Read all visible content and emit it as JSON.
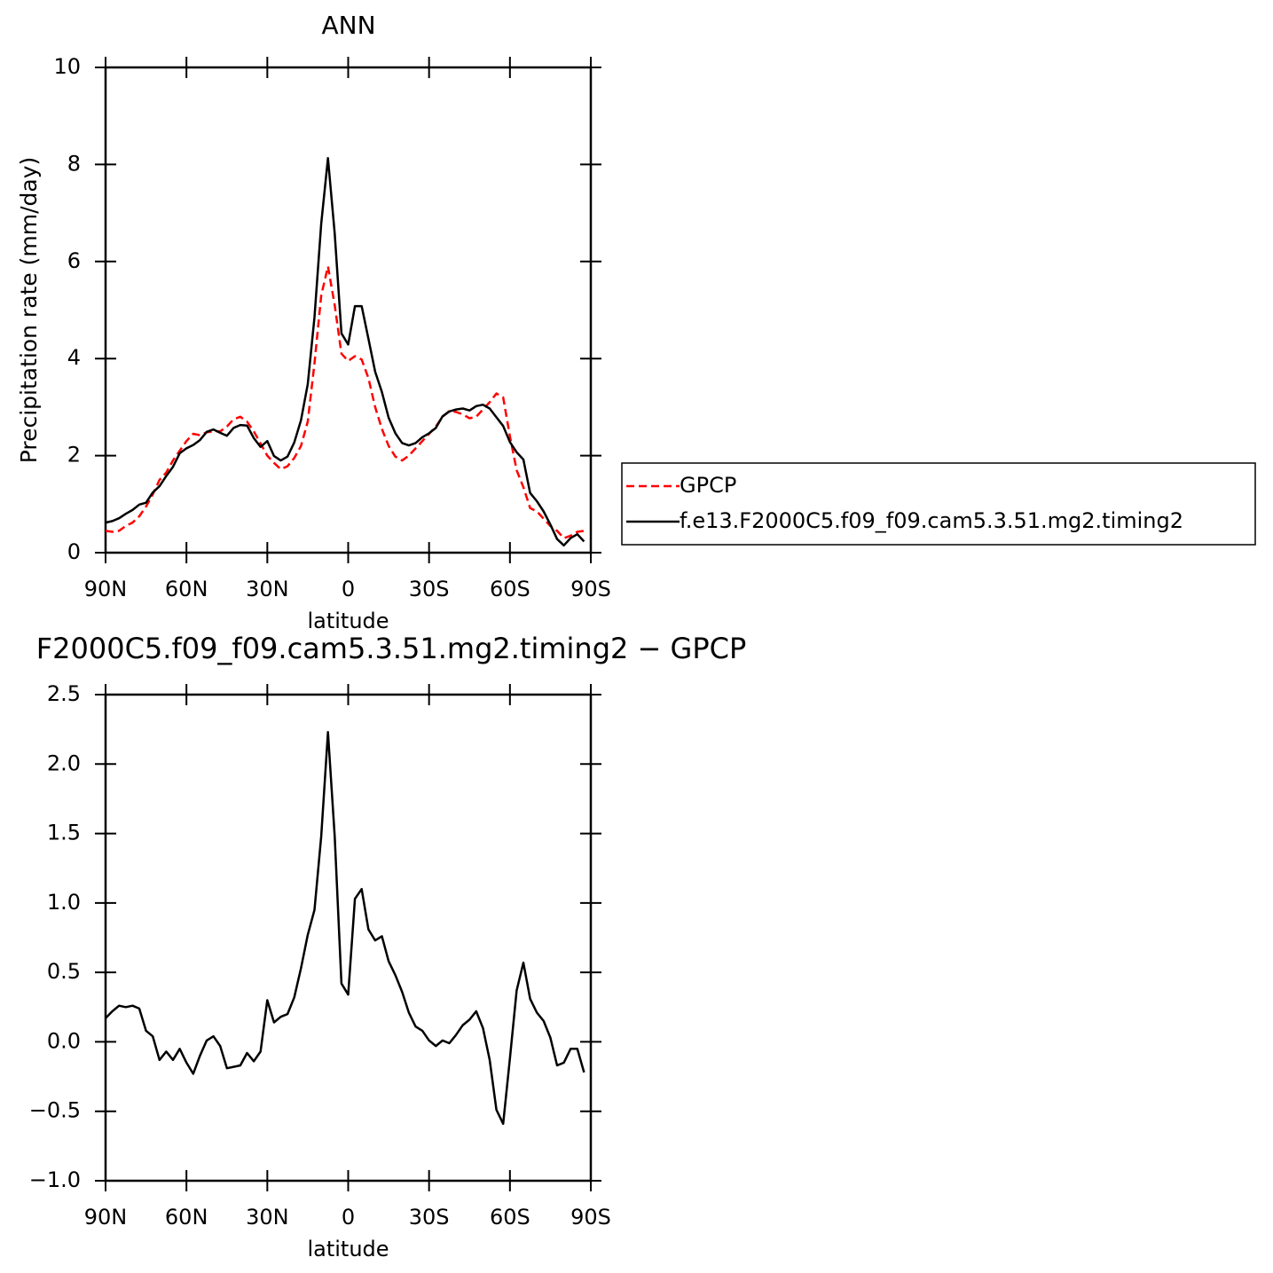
{
  "chart_data": [
    {
      "type": "line",
      "title": "ANN",
      "ylabel": "Precipitation rate (mm/day)",
      "xlabel": "latitude",
      "x": [
        90,
        87.5,
        85,
        82.5,
        80,
        77.5,
        75,
        72.5,
        70,
        67.5,
        65,
        62.5,
        60,
        57.5,
        55,
        52.5,
        50,
        47.5,
        45,
        42.5,
        40,
        37.5,
        35,
        32.5,
        30,
        27.5,
        25,
        22.5,
        20,
        17.5,
        15,
        12.5,
        10,
        7.5,
        5,
        2.5,
        0,
        -2.5,
        -5,
        -7.5,
        -10,
        -12.5,
        -15,
        -17.5,
        -20,
        -22.5,
        -25,
        -27.5,
        -30,
        -32.5,
        -35,
        -37.5,
        -40,
        -42.5,
        -45,
        -47.5,
        -50,
        -52.5,
        -55,
        -57.5,
        -60,
        -62.5,
        -65,
        -67.5,
        -70,
        -72.5,
        -75,
        -77.5,
        -80,
        -82.5,
        -85,
        -87.5
      ],
      "xlim": [
        90,
        -90
      ],
      "xticks": [
        {
          "value": 90,
          "label": "90N"
        },
        {
          "value": 60,
          "label": "60N"
        },
        {
          "value": 30,
          "label": "30N"
        },
        0,
        {
          "value": -30,
          "label": "30S"
        },
        {
          "value": -60,
          "label": "60S"
        },
        {
          "value": -90,
          "label": "90S"
        }
      ],
      "ylim": [
        0,
        10
      ],
      "yticks": [
        0,
        2,
        4,
        6,
        8,
        10
      ],
      "legend": "right",
      "series": [
        {
          "name": "GPCP",
          "color": "#ff0000",
          "linestyle": "dashed",
          "values": [
            0.45,
            0.43,
            0.45,
            0.55,
            0.62,
            0.75,
            0.95,
            1.2,
            1.5,
            1.65,
            1.9,
            2.1,
            2.3,
            2.45,
            2.42,
            2.48,
            2.5,
            2.5,
            2.6,
            2.75,
            2.8,
            2.7,
            2.5,
            2.25,
            2.0,
            1.85,
            1.72,
            1.78,
            1.95,
            2.2,
            2.7,
            3.9,
            5.3,
            5.9,
            5.1,
            4.1,
            3.95,
            4.05,
            3.98,
            3.6,
            3.0,
            2.55,
            2.2,
            1.98,
            1.9,
            2.0,
            2.15,
            2.3,
            2.45,
            2.6,
            2.8,
            2.92,
            2.9,
            2.85,
            2.77,
            2.8,
            2.95,
            3.1,
            3.28,
            3.2,
            2.4,
            1.7,
            1.35,
            0.92,
            0.85,
            0.7,
            0.55,
            0.45,
            0.3,
            0.35,
            0.43,
            0.45
          ]
        },
        {
          "name": "f.e13.F2000C5.f09_f09.cam5.3.51.mg2.timing2",
          "color": "#000000",
          "linestyle": "solid",
          "values": [
            0.62,
            0.65,
            0.71,
            0.8,
            0.88,
            0.99,
            1.03,
            1.24,
            1.37,
            1.58,
            1.77,
            2.05,
            2.15,
            2.22,
            2.32,
            2.49,
            2.54,
            2.47,
            2.41,
            2.57,
            2.63,
            2.62,
            2.36,
            2.18,
            2.3,
            1.99,
            1.9,
            1.98,
            2.27,
            2.73,
            3.47,
            4.85,
            6.78,
            8.13,
            6.58,
            4.52,
            4.29,
            5.08,
            5.08,
            4.41,
            3.73,
            3.31,
            2.78,
            2.46,
            2.26,
            2.21,
            2.26,
            2.38,
            2.46,
            2.57,
            2.81,
            2.91,
            2.95,
            2.97,
            2.93,
            3.02,
            3.05,
            2.97,
            2.79,
            2.61,
            2.28,
            2.07,
            1.92,
            1.23,
            1.06,
            0.85,
            0.58,
            0.28,
            0.15,
            0.3,
            0.38,
            0.23
          ]
        }
      ]
    },
    {
      "type": "line",
      "title": "F2000C5.f09_f09.cam5.3.51.mg2.timing2 − GPCP",
      "xlabel": "latitude",
      "x": [
        90,
        87.5,
        85,
        82.5,
        80,
        77.5,
        75,
        72.5,
        70,
        67.5,
        65,
        62.5,
        60,
        57.5,
        55,
        52.5,
        50,
        47.5,
        45,
        42.5,
        40,
        37.5,
        35,
        32.5,
        30,
        27.5,
        25,
        22.5,
        20,
        17.5,
        15,
        12.5,
        10,
        7.5,
        5,
        2.5,
        0,
        -2.5,
        -5,
        -7.5,
        -10,
        -12.5,
        -15,
        -17.5,
        -20,
        -22.5,
        -25,
        -27.5,
        -30,
        -32.5,
        -35,
        -37.5,
        -40,
        -42.5,
        -45,
        -47.5,
        -50,
        -52.5,
        -55,
        -57.5,
        -60,
        -62.5,
        -65,
        -67.5,
        -70,
        -72.5,
        -75,
        -77.5,
        -80,
        -82.5,
        -85,
        -87.5
      ],
      "xlim": [
        90,
        -90
      ],
      "xticks": [
        {
          "value": 90,
          "label": "90N"
        },
        {
          "value": 60,
          "label": "60N"
        },
        {
          "value": 30,
          "label": "30N"
        },
        0,
        {
          "value": -30,
          "label": "30S"
        },
        {
          "value": -60,
          "label": "60S"
        },
        {
          "value": -90,
          "label": "90S"
        }
      ],
      "ylim": [
        -1.0,
        2.5
      ],
      "yticks": [
        {
          "value": -1,
          "label": "−1.0"
        },
        {
          "value": -0.5,
          "label": "−0.5"
        },
        {
          "value": 0,
          "label": "0.0"
        },
        0.5,
        {
          "value": 1,
          "label": "1.0"
        },
        1.5,
        {
          "value": 2,
          "label": "2.0"
        },
        2.5
      ],
      "series": [
        {
          "color": "#000000",
          "linestyle": "solid",
          "values": [
            0.17,
            0.22,
            0.26,
            0.25,
            0.26,
            0.24,
            0.08,
            0.04,
            -0.13,
            -0.07,
            -0.13,
            -0.05,
            -0.15,
            -0.23,
            -0.1,
            0.01,
            0.04,
            -0.03,
            -0.19,
            -0.18,
            -0.17,
            -0.08,
            -0.14,
            -0.07,
            0.3,
            0.14,
            0.18,
            0.2,
            0.32,
            0.53,
            0.77,
            0.95,
            1.48,
            2.23,
            1.48,
            0.42,
            0.34,
            1.03,
            1.1,
            0.81,
            0.73,
            0.76,
            0.58,
            0.48,
            0.36,
            0.21,
            0.11,
            0.08,
            0.01,
            -0.03,
            0.01,
            -0.01,
            0.05,
            0.12,
            0.16,
            0.22,
            0.1,
            -0.13,
            -0.49,
            -0.59,
            -0.12,
            0.37,
            0.57,
            0.31,
            0.21,
            0.15,
            0.03,
            -0.17,
            -0.15,
            -0.05,
            -0.05,
            -0.22
          ]
        }
      ]
    }
  ]
}
